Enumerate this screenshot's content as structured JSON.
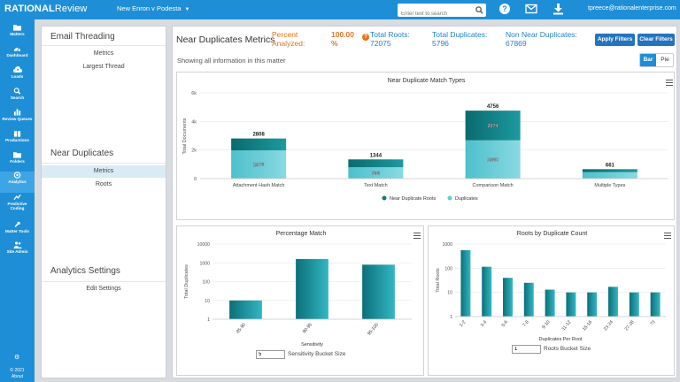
{
  "topbar": {
    "logo_bold": "RATIONAL",
    "logo_rest": "Review",
    "matter": "New Enron v Podesta",
    "search_placeholder": "Enter text to search",
    "user_email": "tpreece@rationalenterprise.com"
  },
  "sidebar": {
    "items": [
      {
        "label": "Matters",
        "icon": "folder-icon"
      },
      {
        "label": "Dashboard",
        "icon": "dashboard-icon"
      },
      {
        "label": "Loads",
        "icon": "cloud-upload-icon"
      },
      {
        "label": "Search",
        "icon": "search-icon"
      },
      {
        "label": "Review Queues",
        "icon": "bar-chart-icon"
      },
      {
        "label": "Productions",
        "icon": "book-icon"
      },
      {
        "label": "Folders",
        "icon": "folder-icon"
      },
      {
        "label": "Analytics",
        "icon": "analytics-icon"
      },
      {
        "label": "Predictive Coding",
        "icon": "line-chart-icon"
      },
      {
        "label": "Matter Tools",
        "icon": "wrench-icon"
      },
      {
        "label": "Site Admin",
        "icon": "users-icon"
      }
    ],
    "year": "© 2021",
    "about": "About"
  },
  "leftpanel": {
    "email_threading": "Email Threading",
    "et_items": [
      "Metrics",
      "Largest Thread"
    ],
    "near_duplicates": "Near Duplicates",
    "nd_items": [
      "Metrics",
      "Roots"
    ],
    "analytics_settings": "Analytics Settings",
    "as_items": [
      "Edit Settings"
    ]
  },
  "header": {
    "title": "Near Duplicates Metrics",
    "percent_label": "Percent Analyzed:",
    "percent_value": "100.00 %",
    "total_roots": "Total Roots: 72075",
    "total_duplicates": "Total Duplicates: 5796",
    "non_near_duplicates": "Non Near Duplicates: 67869",
    "apply_filters": "Apply Filters",
    "clear_filters": "Clear Filters",
    "info": "Showing all information in this matter",
    "toggle_bar": "Bar",
    "toggle_pie": "Pie"
  },
  "colors": {
    "brand": "#1e8fd6",
    "teal_dark": "#0c7a7e",
    "teal_light": "#63cdd8",
    "teal_mid": "#2aa9b6"
  },
  "chart_data": [
    {
      "type": "bar",
      "title": "Near Duplicate Match Types",
      "ylabel": "Total Documents",
      "ylim": [
        0,
        6000
      ],
      "yticks": [
        "0",
        "2k",
        "4k",
        "6k"
      ],
      "categories": [
        "Attachment Hash Match",
        "Text Match",
        "Comparison Match",
        "Multiple Types"
      ],
      "totals": [
        "2808",
        "1344",
        "4756",
        "661"
      ],
      "series": [
        {
          "name": "Near Duplicate Roots",
          "values": [
            830,
            550,
            2074,
            210
          ],
          "labels": [
            "",
            "",
            "2074",
            ""
          ]
        },
        {
          "name": "Duplicates",
          "values": [
            1978,
            794,
            2682,
            451
          ],
          "labels": [
            "1978",
            "794",
            "2682",
            ""
          ]
        }
      ]
    },
    {
      "type": "bar",
      "title": "Percentage Match",
      "ylabel": "Total Duplicates",
      "xlabel": "Sensitivity",
      "yscale": "log",
      "yticks": [
        "1",
        "10",
        "100",
        "1000",
        "10000"
      ],
      "categories": [
        "85-90",
        "90-95",
        "95-100"
      ],
      "values": [
        10,
        1600,
        800
      ],
      "bucket_label": "Sensitivity Bucket Size",
      "bucket_value": "5"
    },
    {
      "type": "bar",
      "title": "Roots by Duplicate Count",
      "ylabel": "Total Roots",
      "xlabel": "Duplicates Per Root",
      "yscale": "log",
      "yticks": [
        "1",
        "10",
        "100",
        "1000"
      ],
      "categories": [
        "1-2",
        "3-4",
        "5-6",
        "7-8",
        "9-10",
        "11-12",
        "15-16",
        "23-24",
        "27-28",
        "73"
      ],
      "values": [
        560,
        115,
        40,
        25,
        13,
        10,
        10,
        17,
        10,
        10
      ],
      "bucket_label": "Roots Bucket Size",
      "bucket_value": "1"
    }
  ]
}
